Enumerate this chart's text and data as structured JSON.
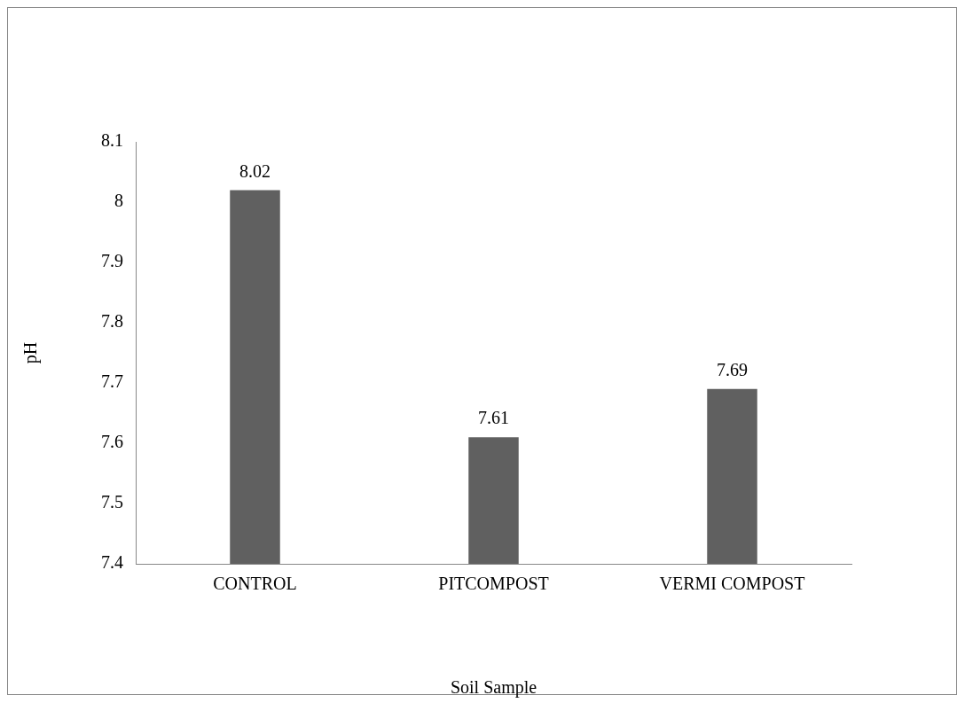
{
  "chart_data": {
    "type": "bar",
    "xlabel": "Soil Sample",
    "ylabel": "pH",
    "categories": [
      "CONTROL",
      "PITCOMPOST",
      "VERMI COMPOST"
    ],
    "values": [
      8.02,
      7.61,
      7.69
    ],
    "color": "#606060",
    "ylim": [
      7.4,
      8.1
    ],
    "yticks": [
      7.4,
      7.5,
      7.6,
      7.7,
      7.8,
      7.9,
      8,
      8.1
    ],
    "grid": false,
    "legend": false,
    "data_labels": true
  }
}
